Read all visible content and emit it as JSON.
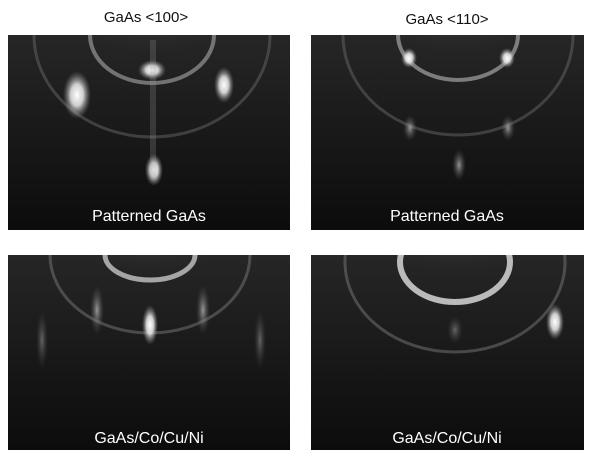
{
  "columns": [
    "GaAs <100>",
    "GaAs <110>"
  ],
  "panels": [
    {
      "label": "Patterned GaAs"
    },
    {
      "label": "Patterned GaAs"
    },
    {
      "label": "GaAs/Co/Cu/Ni"
    },
    {
      "label": "GaAs/Co/Cu/Ni"
    }
  ]
}
